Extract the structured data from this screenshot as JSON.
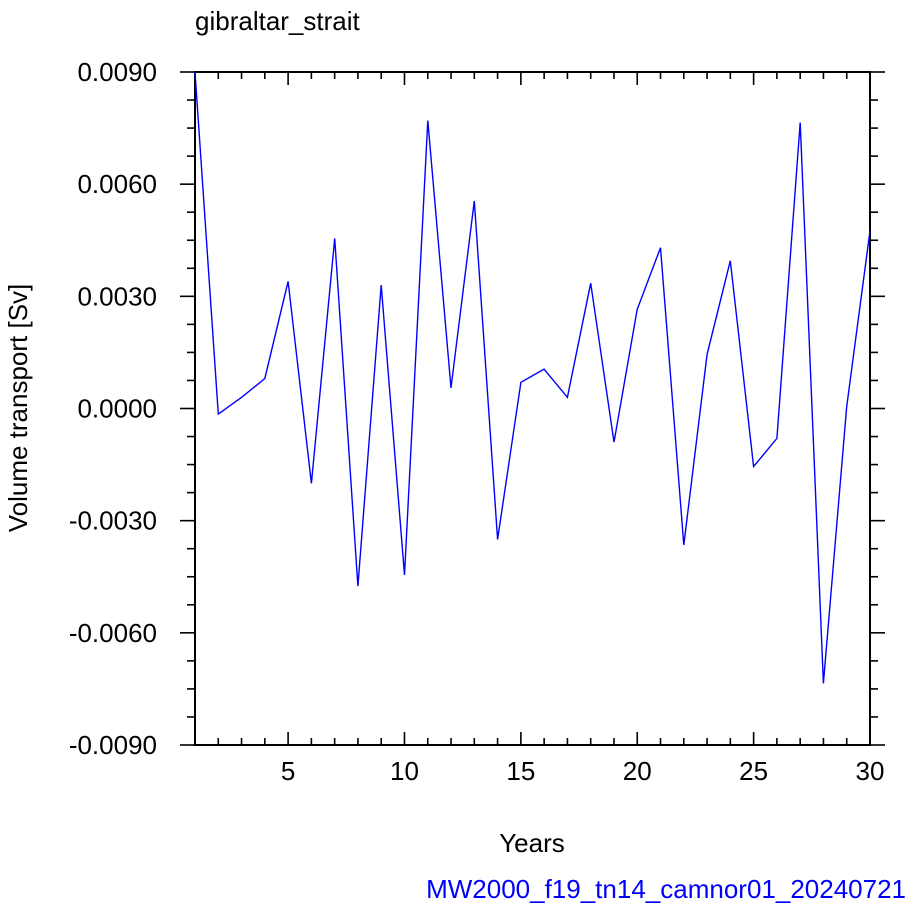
{
  "chart_data": {
    "type": "line",
    "title": "gibraltar_strait",
    "xlabel": "Years",
    "ylabel": "Volume transport [Sv]",
    "footer": "MW2000_f19_tn14_camnor01_20240721",
    "xlim": [
      1,
      30
    ],
    "ylim": [
      -0.009,
      0.009
    ],
    "xticks_major": [
      5,
      10,
      15,
      20,
      25,
      30
    ],
    "xtick_labels": [
      "5",
      "10",
      "15",
      "20",
      "25",
      "30"
    ],
    "yticks_major": [
      -0.009,
      -0.006,
      -0.003,
      0.0,
      0.003,
      0.006,
      0.009
    ],
    "ytick_labels": [
      "-0.0090",
      "-0.0060",
      "-0.0030",
      "0.0000",
      "0.0030",
      "0.0060",
      "0.0090"
    ],
    "grid": false,
    "series": [
      {
        "color": "#0000ff",
        "x": [
          1,
          2,
          3,
          4,
          5,
          6,
          7,
          8,
          9,
          10,
          11,
          12,
          13,
          14,
          15,
          16,
          17,
          18,
          19,
          20,
          21,
          22,
          23,
          24,
          25,
          26,
          27,
          28,
          29,
          30
        ],
        "y": [
          0.009,
          -0.00015,
          0.0003,
          0.0008,
          0.0034,
          -0.002,
          0.00455,
          -0.00475,
          0.0033,
          -0.00445,
          0.0077,
          0.00055,
          0.00555,
          -0.0035,
          0.0007,
          0.00105,
          0.0003,
          0.00335,
          -0.0009,
          0.00265,
          0.0043,
          -0.00365,
          0.00145,
          0.00395,
          -0.00155,
          -0.0008,
          0.00765,
          -0.00735,
          5e-05,
          0.00475
        ]
      }
    ]
  }
}
